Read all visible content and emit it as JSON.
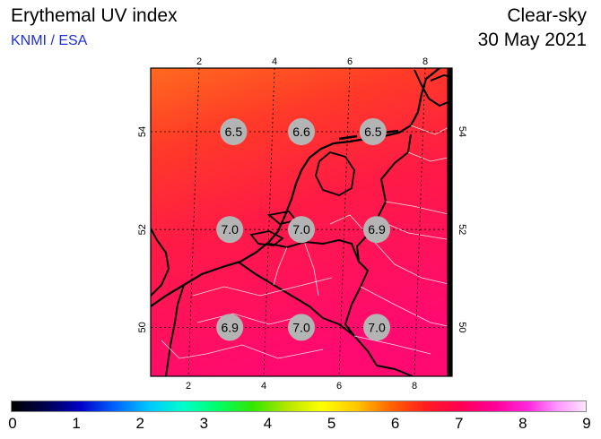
{
  "header": {
    "title": "Erythemal UV index",
    "source": "KNMI / ESA",
    "condition": "Clear-sky",
    "date": "30 May 2021"
  },
  "map": {
    "lon_range": [
      1,
      9
    ],
    "lat_range": [
      49,
      55.3
    ],
    "lon_ticks_top": [
      "2",
      "4",
      "6",
      "8"
    ],
    "lon_ticks_bottom": [
      "2",
      "4",
      "6",
      "8"
    ],
    "lat_ticks": [
      "50",
      "52",
      "54"
    ],
    "values": [
      {
        "lon": 3.2,
        "lat": 54.0,
        "label": "6.5"
      },
      {
        "lon": 5.0,
        "lat": 54.0,
        "label": "6.6"
      },
      {
        "lon": 6.9,
        "lat": 54.0,
        "label": "6.5"
      },
      {
        "lon": 3.1,
        "lat": 52.0,
        "label": "7.0"
      },
      {
        "lon": 5.0,
        "lat": 52.0,
        "label": "7.0"
      },
      {
        "lon": 7.0,
        "lat": 52.0,
        "label": "6.9"
      },
      {
        "lon": 3.1,
        "lat": 50.0,
        "label": "6.9"
      },
      {
        "lon": 5.0,
        "lat": 50.0,
        "label": "7.0"
      },
      {
        "lon": 7.0,
        "lat": 50.0,
        "label": "7.0"
      }
    ]
  },
  "colorbar": {
    "labels": [
      "0",
      "1",
      "2",
      "3",
      "4",
      "5",
      "6",
      "7",
      "8",
      "9"
    ]
  }
}
